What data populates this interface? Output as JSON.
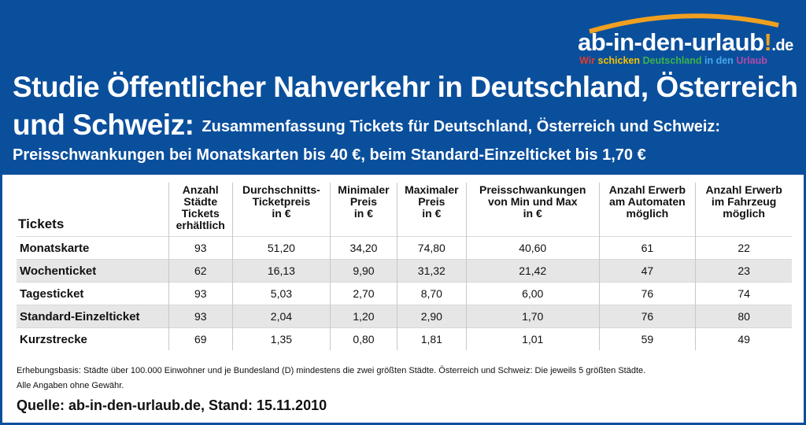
{
  "colors": {
    "background": "#0a4f9c",
    "header_text": "#ffffff",
    "row_alt": "#e6e6e6"
  },
  "logo": {
    "brand": "ab-in-den-urlaub",
    "exclamation": "!",
    "tld": ".de",
    "tagline": [
      "Wir",
      "schicken",
      "Deutschland",
      "in den",
      "Urlaub"
    ]
  },
  "title": {
    "line1": "Studie Öffentlicher Nahverkehr in Deutschland, Österreich",
    "line2_big": "und Schweiz:",
    "line2_small": "Zusammenfassung Tickets für Deutschland, Österreich und Schweiz:",
    "line3": "Preisschwankungen bei Monatskarten bis 40 €, beim Standard-Einzelticket bis 1,70 €"
  },
  "table": {
    "headers": [
      "Tickets",
      "Anzahl Städte Tickets erhältlich",
      "Durchschnitts-Ticketpreis in €",
      "Minimaler Preis in €",
      "Maximaler Preis in €",
      "Preisschwankungen von Min und Max in €",
      "Anzahl Erwerb am Automaten möglich",
      "Anzahl Erwerb im Fahrzeug möglich"
    ],
    "header_lines": [
      [],
      [
        "Anzahl",
        "Städte",
        "Tickets",
        "erhältlich"
      ],
      [
        "Durchschnitts-",
        "Ticketpreis",
        "in €"
      ],
      [
        "Minimaler",
        "Preis",
        "in €"
      ],
      [
        "Maximaler",
        "Preis",
        "in €"
      ],
      [
        "Preisschwankungen",
        "von Min und Max",
        "in €"
      ],
      [
        "Anzahl Erwerb",
        "am Automaten",
        "möglich"
      ],
      [
        "Anzahl Erwerb",
        "im Fahrzeug",
        "möglich"
      ]
    ],
    "rows": [
      [
        "Monatskarte",
        "93",
        "51,20",
        "34,20",
        "74,80",
        "40,60",
        "61",
        "22"
      ],
      [
        "Wochenticket",
        "62",
        "16,13",
        "9,90",
        "31,32",
        "21,42",
        "47",
        "23"
      ],
      [
        "Tagesticket",
        "93",
        "5,03",
        "2,70",
        "8,70",
        "6,00",
        "76",
        "74"
      ],
      [
        "Standard-Einzelticket",
        "93",
        "2,04",
        "1,20",
        "2,90",
        "1,70",
        "76",
        "80"
      ],
      [
        "Kurzstrecke",
        "69",
        "1,35",
        "0,80",
        "1,81",
        "1,01",
        "59",
        "49"
      ]
    ]
  },
  "footer": {
    "note1": "Erhebungsbasis: Städte über 100.000 Einwohner und je Bundesland (D) mindestens die zwei größten Städte. Österreich und Schweiz: Die jeweils 5 größten Städte.",
    "note2": "Alle Angaben ohne Gewähr.",
    "source": "Quelle: ab-in-den-urlaub.de, Stand: 15.11.2010"
  }
}
